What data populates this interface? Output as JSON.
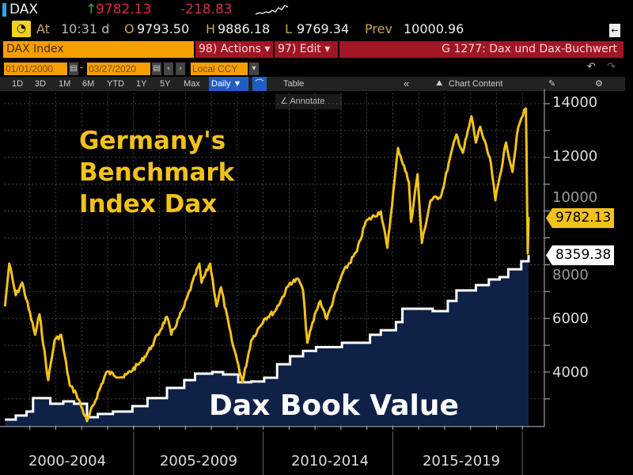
{
  "header": {
    "ticker": "DAX",
    "last_price": "9782.13",
    "change": "-218.83",
    "time_label": "At",
    "time": "10:31 d",
    "open_label": "O",
    "open": "9793.50",
    "high_label": "H",
    "high": "9886.18",
    "low_label": "L",
    "low": "9769.34",
    "prev_label": "Prev",
    "prev": "10000.96",
    "colors": {
      "up": "#2fa84f",
      "down": "#e0283c",
      "accent": "#f5a000",
      "menu": "#a11624"
    }
  },
  "command_bar": {
    "security": "DAX Index",
    "actions": "98) Actions ▾",
    "edit": "97) Edit ▾",
    "chart_name": "G 1277: Dax und Dax-Buchwert"
  },
  "range_bar": {
    "start_date": "01/01/2000",
    "end_date": "03/27/2020",
    "currency": "Local CCY"
  },
  "toolbar": {
    "periods": [
      "1D",
      "3D",
      "1M",
      "6M",
      "YTD",
      "1Y",
      "5Y",
      "Max"
    ],
    "frequency": "Daily ▼",
    "table": "Table",
    "collapse": "«",
    "chart_content": "Chart Content",
    "annotate": "Annotate"
  },
  "chart_data": {
    "type": "line",
    "xlim": [
      "2000-01-01",
      "2020-03-27"
    ],
    "ylim": [
      2000,
      14400
    ],
    "grid": true,
    "y_axis_position": "right",
    "y_ticks": [
      "4000",
      "6000",
      "8000",
      "10000",
      "12000",
      "14000"
    ],
    "x_tick_labels": [
      "2000-2004",
      "2005-2009",
      "2010-2014",
      "2015-2019"
    ],
    "annotations": [
      "Germany's Benchmark Index Dax",
      "Dax Book Value"
    ],
    "series": [
      {
        "name": "Germany's Benchmark Index Dax",
        "color": "#f2c21b",
        "last_label": "9782.13",
        "points": [
          [
            "2000-01",
            6450
          ],
          [
            "2000-03",
            8040
          ],
          [
            "2000-06",
            6860
          ],
          [
            "2000-09",
            7330
          ],
          [
            "2001-03",
            5390
          ],
          [
            "2001-05",
            6150
          ],
          [
            "2001-09",
            3700
          ],
          [
            "2001-12",
            5180
          ],
          [
            "2002-03",
            5390
          ],
          [
            "2002-07",
            3500
          ],
          [
            "2002-10",
            3200
          ],
          [
            "2003-03",
            2170
          ],
          [
            "2003-12",
            4000
          ],
          [
            "2004-08",
            3800
          ],
          [
            "2005-04",
            4380
          ],
          [
            "2005-09",
            4970
          ],
          [
            "2006-04",
            6060
          ],
          [
            "2006-06",
            5390
          ],
          [
            "2006-12",
            6450
          ],
          [
            "2007-07",
            8040
          ],
          [
            "2007-08",
            7330
          ],
          [
            "2007-12",
            8040
          ],
          [
            "2008-03",
            6450
          ],
          [
            "2008-05",
            7160
          ],
          [
            "2008-10",
            5180
          ],
          [
            "2009-01",
            4290
          ],
          [
            "2009-03",
            3620
          ],
          [
            "2009-07",
            5180
          ],
          [
            "2010-01",
            5980
          ],
          [
            "2010-06",
            6270
          ],
          [
            "2011-01",
            7330
          ],
          [
            "2011-05",
            7450
          ],
          [
            "2011-07",
            7040
          ],
          [
            "2011-09",
            5090
          ],
          [
            "2012-01",
            6270
          ],
          [
            "2012-03",
            6650
          ],
          [
            "2012-06",
            5980
          ],
          [
            "2013-01",
            7630
          ],
          [
            "2013-08",
            8510
          ],
          [
            "2013-12",
            9600
          ],
          [
            "2014-07",
            9990
          ],
          [
            "2014-10",
            8630
          ],
          [
            "2015-03",
            12350
          ],
          [
            "2015-08",
            11080
          ],
          [
            "2015-09",
            9600
          ],
          [
            "2015-12",
            11370
          ],
          [
            "2016-02",
            8810
          ],
          [
            "2016-06",
            10400
          ],
          [
            "2016-11",
            10580
          ],
          [
            "2017-03",
            11960
          ],
          [
            "2017-06",
            12850
          ],
          [
            "2017-09",
            12170
          ],
          [
            "2018-01",
            13530
          ],
          [
            "2018-03",
            12550
          ],
          [
            "2018-05",
            13140
          ],
          [
            "2018-10",
            11760
          ],
          [
            "2018-12",
            10400
          ],
          [
            "2019-05",
            12550
          ],
          [
            "2019-08",
            11460
          ],
          [
            "2019-10",
            12850
          ],
          [
            "2019-12",
            13440
          ],
          [
            "2020-02-19",
            13820
          ],
          [
            "2020-02-28",
            12350
          ],
          [
            "2020-03-06",
            10400
          ],
          [
            "2020-03-16",
            8420
          ],
          [
            "2020-03-27",
            9782.13
          ]
        ]
      },
      {
        "name": "Dax Book Value",
        "color": "#ffffff",
        "fill": "#0f2147",
        "last_label": "8359.38",
        "points": [
          [
            "2000-01",
            2230
          ],
          [
            "2000-06",
            2380
          ],
          [
            "2000-11",
            2530
          ],
          [
            "2001-02",
            3030
          ],
          [
            "2001-05",
            3030
          ],
          [
            "2001-10",
            2820
          ],
          [
            "2002-04",
            2910
          ],
          [
            "2002-09",
            2820
          ],
          [
            "2003-03",
            2320
          ],
          [
            "2003-08",
            2440
          ],
          [
            "2004-03",
            2530
          ],
          [
            "2004-12",
            2730
          ],
          [
            "2005-07",
            3030
          ],
          [
            "2006-04",
            3410
          ],
          [
            "2006-12",
            3700
          ],
          [
            "2007-05",
            3940
          ],
          [
            "2008-01",
            4000
          ],
          [
            "2008-06",
            3910
          ],
          [
            "2009-01",
            3620
          ],
          [
            "2009-07",
            3650
          ],
          [
            "2010-01",
            3790
          ],
          [
            "2010-07",
            4290
          ],
          [
            "2011-01",
            4590
          ],
          [
            "2011-07",
            4790
          ],
          [
            "2012-01",
            4930
          ],
          [
            "2013-01",
            5090
          ],
          [
            "2014-02",
            5390
          ],
          [
            "2014-07",
            5560
          ],
          [
            "2015-02",
            5860
          ],
          [
            "2015-05",
            6360
          ],
          [
            "2016-07",
            6270
          ],
          [
            "2016-12",
            6270
          ],
          [
            "2017-02",
            6650
          ],
          [
            "2017-06",
            7040
          ],
          [
            "2018-03",
            7240
          ],
          [
            "2018-09",
            7450
          ],
          [
            "2019-02",
            7540
          ],
          [
            "2019-06",
            7830
          ],
          [
            "2019-12",
            8130
          ],
          [
            "2020-03-27",
            8359.38
          ]
        ]
      }
    ]
  }
}
